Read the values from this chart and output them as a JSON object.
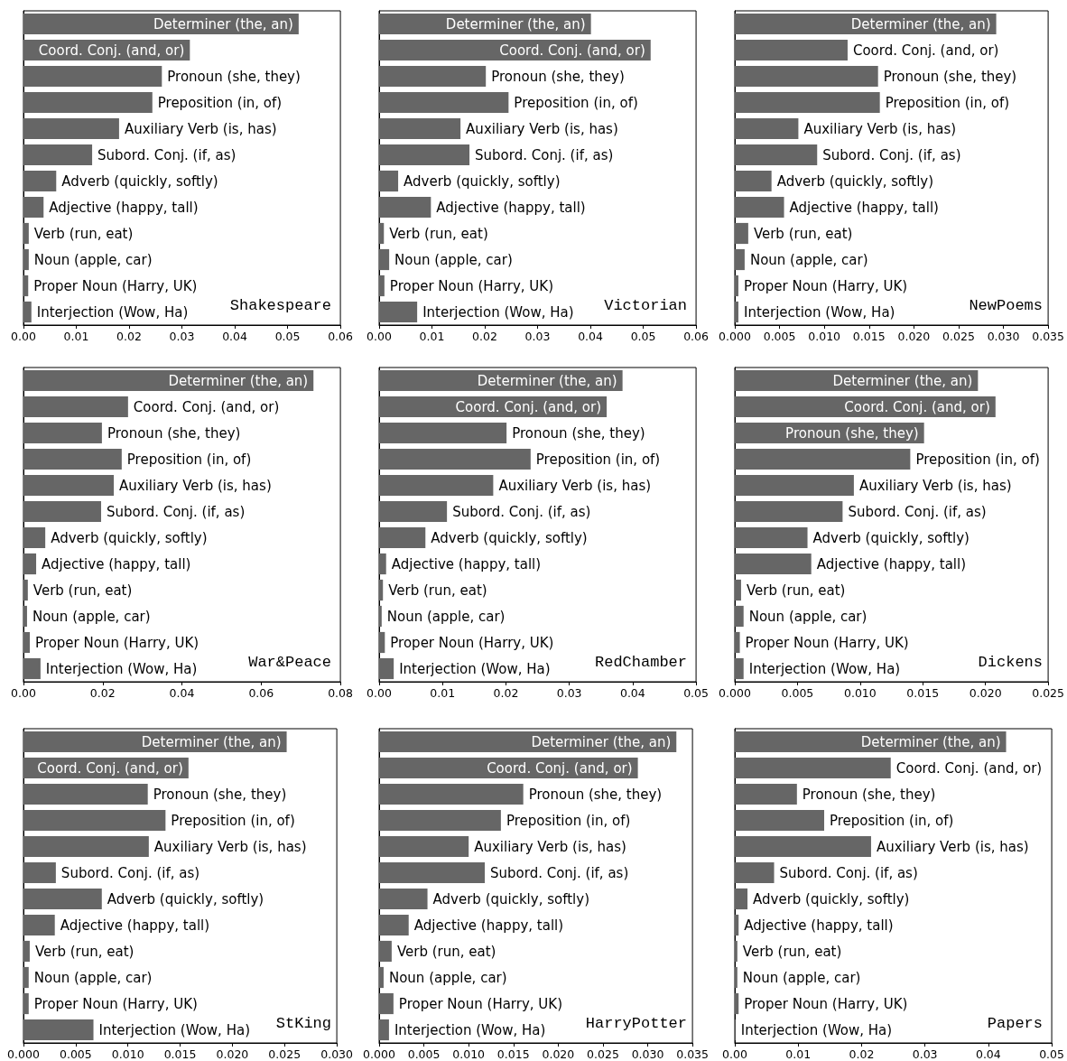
{
  "chart_data": [
    {
      "type": "bar",
      "orientation": "horizontal",
      "title": "Shakespeare",
      "categories": [
        "Determiner (the, an)",
        "Coord. Conj. (and, or)",
        "Pronoun (she, they)",
        "Preposition (in, of)",
        "Auxiliary Verb (is, has)",
        "Subord. Conj. (if, as)",
        "Adverb (quickly, softly)",
        "Adjective (happy, tall)",
        "Verb (run, eat)",
        "Noun (apple, car)",
        "Proper Noun (Harry, UK)",
        "Interjection (Wow, Ha)"
      ],
      "values": [
        0.0521,
        0.0315,
        0.0262,
        0.0244,
        0.0181,
        0.013,
        0.0062,
        0.0038,
        0.001,
        0.001,
        0.0009,
        0.0015
      ],
      "color": "#666666",
      "xlim": [
        0,
        0.06
      ],
      "xticks": [
        {
          "value": 0,
          "label": "0.00"
        },
        {
          "value": 0.01,
          "label": "0.01"
        },
        {
          "value": 0.02,
          "label": "0.02"
        },
        {
          "value": 0.03,
          "label": "0.03"
        },
        {
          "value": 0.04,
          "label": "0.04"
        },
        {
          "value": 0.05,
          "label": "0.05"
        },
        {
          "value": 0.06,
          "label": "0.06"
        }
      ],
      "tick_labels": "x"
    },
    {
      "type": "bar",
      "orientation": "horizontal",
      "title": "Victorian",
      "categories": [
        "Determiner (the, an)",
        "Coord. Conj. (and, or)",
        "Pronoun (she, they)",
        "Preposition (in, of)",
        "Auxiliary Verb (is, has)",
        "Subord. Conj. (if, as)",
        "Adverb (quickly, softly)",
        "Adjective (happy, tall)",
        "Verb (run, eat)",
        "Noun (apple, car)",
        "Proper Noun (Harry, UK)",
        "Interjection (Wow, Ha)"
      ],
      "values": [
        0.0401,
        0.0514,
        0.0202,
        0.0245,
        0.0154,
        0.0171,
        0.0036,
        0.0098,
        0.0009,
        0.0019,
        0.001,
        0.0072
      ],
      "color": "#666666",
      "xlim": [
        0,
        0.06
      ],
      "xticks": [
        {
          "value": 0,
          "label": "0.00"
        },
        {
          "value": 0.01,
          "label": "0.01"
        },
        {
          "value": 0.02,
          "label": "0.02"
        },
        {
          "value": 0.03,
          "label": "0.03"
        },
        {
          "value": 0.04,
          "label": "0.04"
        },
        {
          "value": 0.05,
          "label": "0.05"
        },
        {
          "value": 0.06,
          "label": "0.06"
        }
      ],
      "tick_labels": "x"
    },
    {
      "type": "bar",
      "orientation": "horizontal",
      "title": "NewPoems",
      "categories": [
        "Determiner (the, an)",
        "Coord. Conj. (and, or)",
        "Pronoun (she, they)",
        "Preposition (in, of)",
        "Auxiliary Verb (is, has)",
        "Subord. Conj. (if, as)",
        "Adverb (quickly, softly)",
        "Adjective (happy, tall)",
        "Verb (run, eat)",
        "Noun (apple, car)",
        "Proper Noun (Harry, UK)",
        "Interjection (Wow, Ha)"
      ],
      "values": [
        0.0292,
        0.0126,
        0.016,
        0.0162,
        0.0071,
        0.0092,
        0.0041,
        0.0055,
        0.0015,
        0.0011,
        0.0004,
        0.0004
      ],
      "color": "#666666",
      "xlim": [
        0,
        0.035
      ],
      "xticks": [
        {
          "value": 0,
          "label": "0.000"
        },
        {
          "value": 0.005,
          "label": "0.005"
        },
        {
          "value": 0.01,
          "label": "0.010"
        },
        {
          "value": 0.015,
          "label": "0.015"
        },
        {
          "value": 0.02,
          "label": "0.020"
        },
        {
          "value": 0.025,
          "label": "0.025"
        },
        {
          "value": 0.03,
          "label": "0.030"
        },
        {
          "value": 0.035,
          "label": "0.035"
        }
      ],
      "tick_labels": "x"
    },
    {
      "type": "bar",
      "orientation": "horizontal",
      "title": "War&Peace",
      "categories": [
        "Determiner (the, an)",
        "Coord. Conj. (and, or)",
        "Pronoun (she, they)",
        "Preposition (in, of)",
        "Auxiliary Verb (is, has)",
        "Subord. Conj. (if, as)",
        "Adverb (quickly, softly)",
        "Adjective (happy, tall)",
        "Verb (run, eat)",
        "Noun (apple, car)",
        "Proper Noun (Harry, UK)",
        "Interjection (Wow, Ha)"
      ],
      "values": [
        0.0732,
        0.0264,
        0.0198,
        0.0248,
        0.0228,
        0.0196,
        0.0055,
        0.0032,
        0.0011,
        0.0009,
        0.0016,
        0.0043
      ],
      "color": "#666666",
      "xlim": [
        0,
        0.08
      ],
      "xticks": [
        {
          "value": 0,
          "label": "0.00"
        },
        {
          "value": 0.02,
          "label": "0.02"
        },
        {
          "value": 0.04,
          "label": "0.04"
        },
        {
          "value": 0.06,
          "label": "0.06"
        },
        {
          "value": 0.08,
          "label": "0.08"
        }
      ],
      "tick_labels": "x"
    },
    {
      "type": "bar",
      "orientation": "horizontal",
      "title": "RedChamber",
      "categories": [
        "Determiner (the, an)",
        "Coord. Conj. (and, or)",
        "Pronoun (she, they)",
        "Preposition (in, of)",
        "Auxiliary Verb (is, has)",
        "Subord. Conj. (if, as)",
        "Adverb (quickly, softly)",
        "Adjective (happy, tall)",
        "Verb (run, eat)",
        "Noun (apple, car)",
        "Proper Noun (Harry, UK)",
        "Interjection (Wow, Ha)"
      ],
      "values": [
        0.0384,
        0.0359,
        0.0201,
        0.0239,
        0.018,
        0.0107,
        0.0073,
        0.0011,
        0.0006,
        0.0004,
        0.0009,
        0.0023
      ],
      "color": "#666666",
      "xlim": [
        0,
        0.05
      ],
      "xticks": [
        {
          "value": 0,
          "label": "0.00"
        },
        {
          "value": 0.01,
          "label": "0.01"
        },
        {
          "value": 0.02,
          "label": "0.02"
        },
        {
          "value": 0.03,
          "label": "0.03"
        },
        {
          "value": 0.04,
          "label": "0.04"
        },
        {
          "value": 0.05,
          "label": "0.05"
        }
      ],
      "tick_labels": "x"
    },
    {
      "type": "bar",
      "orientation": "horizontal",
      "title": "Dickens",
      "categories": [
        "Determiner (the, an)",
        "Coord. Conj. (and, or)",
        "Pronoun (she, they)",
        "Preposition (in, of)",
        "Auxiliary Verb (is, has)",
        "Subord. Conj. (if, as)",
        "Adverb (quickly, softly)",
        "Adjective (happy, tall)",
        "Verb (run, eat)",
        "Noun (apple, car)",
        "Proper Noun (Harry, UK)",
        "Interjection (Wow, Ha)"
      ],
      "values": [
        0.0194,
        0.0208,
        0.0151,
        0.014,
        0.0095,
        0.0086,
        0.0058,
        0.0061,
        0.0005,
        0.0007,
        0.0004,
        0.0007
      ],
      "color": "#666666",
      "xlim": [
        0,
        0.025
      ],
      "xticks": [
        {
          "value": 0,
          "label": "0.000"
        },
        {
          "value": 0.005,
          "label": "0.005"
        },
        {
          "value": 0.01,
          "label": "0.010"
        },
        {
          "value": 0.015,
          "label": "0.015"
        },
        {
          "value": 0.02,
          "label": "0.020"
        },
        {
          "value": 0.025,
          "label": "0.025"
        }
      ],
      "tick_labels": "x"
    },
    {
      "type": "bar",
      "orientation": "horizontal",
      "title": "StKing",
      "categories": [
        "Determiner (the, an)",
        "Coord. Conj. (and, or)",
        "Pronoun (she, they)",
        "Preposition (in, of)",
        "Auxiliary Verb (is, has)",
        "Subord. Conj. (if, as)",
        "Adverb (quickly, softly)",
        "Adjective (happy, tall)",
        "Verb (run, eat)",
        "Noun (apple, car)",
        "Proper Noun (Harry, UK)",
        "Interjection (Wow, Ha)"
      ],
      "values": [
        0.0252,
        0.0158,
        0.0119,
        0.0136,
        0.012,
        0.0031,
        0.0075,
        0.003,
        0.0006,
        0.0005,
        0.0005,
        0.0067
      ],
      "color": "#666666",
      "xlim": [
        0,
        0.03
      ],
      "xticks": [
        {
          "value": 0,
          "label": "0.000"
        },
        {
          "value": 0.005,
          "label": "0.005"
        },
        {
          "value": 0.01,
          "label": "0.010"
        },
        {
          "value": 0.015,
          "label": "0.015"
        },
        {
          "value": 0.02,
          "label": "0.020"
        },
        {
          "value": 0.025,
          "label": "0.025"
        },
        {
          "value": 0.03,
          "label": "0.030"
        }
      ],
      "tick_labels": "x"
    },
    {
      "type": "bar",
      "orientation": "horizontal",
      "title": "HarryPotter",
      "categories": [
        "Determiner (the, an)",
        "Coord. Conj. (and, or)",
        "Pronoun (she, they)",
        "Preposition (in, of)",
        "Auxiliary Verb (is, has)",
        "Subord. Conj. (if, as)",
        "Adverb (quickly, softly)",
        "Adjective (happy, tall)",
        "Verb (run, eat)",
        "Noun (apple, car)",
        "Proper Noun (Harry, UK)",
        "Interjection (Wow, Ha)"
      ],
      "values": [
        0.0332,
        0.0289,
        0.0161,
        0.0136,
        0.01,
        0.0118,
        0.0054,
        0.0033,
        0.0014,
        0.0005,
        0.0016,
        0.0011
      ],
      "color": "#666666",
      "xlim": [
        0,
        0.035
      ],
      "xticks": [
        {
          "value": 0,
          "label": "0.000"
        },
        {
          "value": 0.005,
          "label": "0.005"
        },
        {
          "value": 0.01,
          "label": "0.010"
        },
        {
          "value": 0.015,
          "label": "0.015"
        },
        {
          "value": 0.02,
          "label": "0.020"
        },
        {
          "value": 0.025,
          "label": "0.025"
        },
        {
          "value": 0.03,
          "label": "0.030"
        },
        {
          "value": 0.035,
          "label": "0.035"
        }
      ],
      "tick_labels": "x"
    },
    {
      "type": "bar",
      "orientation": "horizontal",
      "title": "Papers",
      "categories": [
        "Determiner (the, an)",
        "Coord. Conj. (and, or)",
        "Pronoun (she, they)",
        "Preposition (in, of)",
        "Auxiliary Verb (is, has)",
        "Subord. Conj. (if, as)",
        "Adverb (quickly, softly)",
        "Adjective (happy, tall)",
        "Verb (run, eat)",
        "Noun (apple, car)",
        "Proper Noun (Harry, UK)",
        "Interjection (Wow, Ha)"
      ],
      "values": [
        0.0428,
        0.0246,
        0.0098,
        0.0141,
        0.0215,
        0.0062,
        0.002,
        0.0006,
        0.0004,
        0.0004,
        0.0006,
        0.0001
      ],
      "color": "#666666",
      "xlim": [
        0,
        0.05
      ],
      "xticks": [
        {
          "value": 0,
          "label": "0.00"
        },
        {
          "value": 0.01,
          "label": "0.01"
        },
        {
          "value": 0.02,
          "label": "0.02"
        },
        {
          "value": 0.03,
          "label": "0.03"
        },
        {
          "value": 0.04,
          "label": "0.04"
        },
        {
          "value": 0.05,
          "label": "0.05"
        }
      ],
      "tick_labels": "x"
    }
  ]
}
